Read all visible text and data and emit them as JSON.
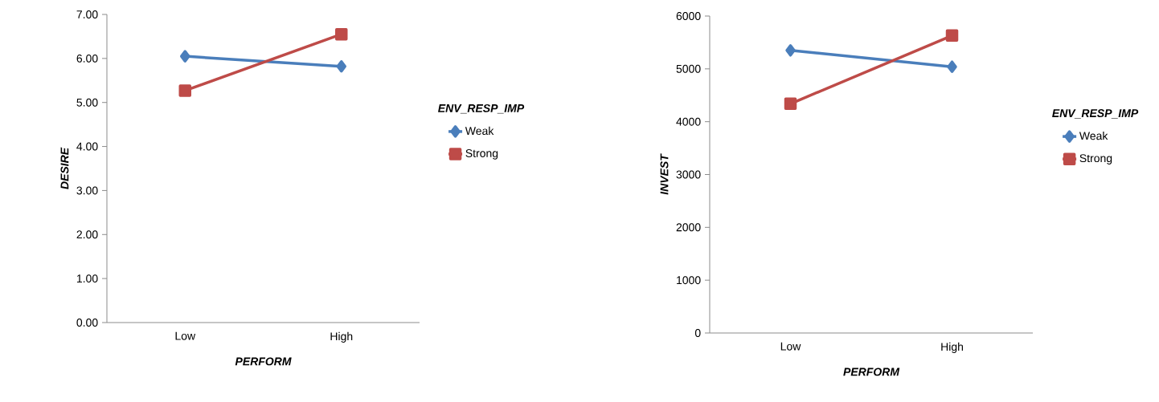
{
  "chart_data": [
    {
      "type": "line",
      "categories": [
        "Low",
        "High"
      ],
      "xlabel": "PERFORM",
      "ylabel": "DESIRE",
      "legend_title": "ENV_RESP_IMP",
      "legend": "right",
      "grid": false,
      "ylim": [
        0,
        7
      ],
      "yticks": [
        {
          "value": 0,
          "label": "0.00"
        },
        {
          "value": 1,
          "label": "1.00"
        },
        {
          "value": 2,
          "label": "2.00"
        },
        {
          "value": 3,
          "label": "3.00"
        },
        {
          "value": 4,
          "label": "4.00"
        },
        {
          "value": 5,
          "label": "5.00"
        },
        {
          "value": 6,
          "label": "6.00"
        },
        {
          "value": 7,
          "label": "7.00"
        }
      ],
      "series": [
        {
          "name": "Weak",
          "color": "#4a7ebb",
          "marker": "diamond",
          "values": [
            6.05,
            5.82
          ]
        },
        {
          "name": "Strong",
          "color": "#be4b48",
          "marker": "square",
          "values": [
            5.27,
            6.55
          ]
        }
      ]
    },
    {
      "type": "line",
      "categories": [
        "Low",
        "High"
      ],
      "xlabel": "PERFORM",
      "ylabel": "INVEST",
      "legend_title": "ENV_RESP_IMP",
      "legend": "right",
      "grid": false,
      "ylim": [
        0,
        6000
      ],
      "yticks": [
        0,
        1000,
        2000,
        3000,
        4000,
        5000,
        6000
      ],
      "series": [
        {
          "name": "Weak",
          "color": "#4a7ebb",
          "marker": "diamond",
          "values": [
            5350,
            5040
          ]
        },
        {
          "name": "Strong",
          "color": "#be4b48",
          "marker": "square",
          "values": [
            4340,
            5630
          ]
        }
      ]
    }
  ]
}
